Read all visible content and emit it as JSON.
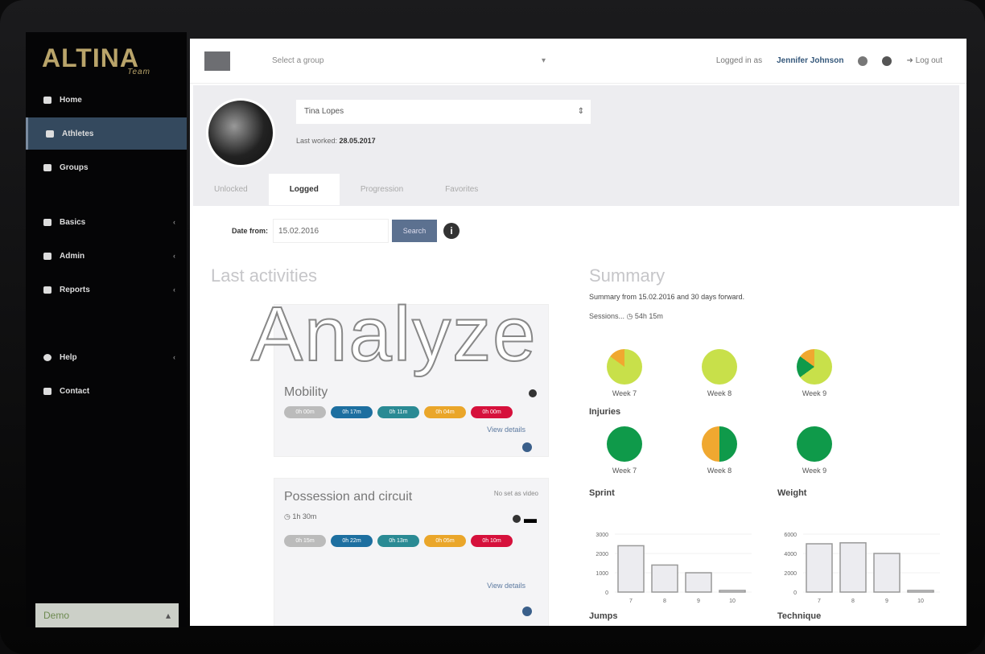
{
  "brand": {
    "logo": "ALTINA",
    "logo_sub": "Team"
  },
  "sidebar": {
    "items": [
      {
        "label": "Home"
      },
      {
        "label": "Athletes",
        "active": true
      },
      {
        "label": "Groups"
      },
      {
        "label": "Basics"
      },
      {
        "label": "Admin"
      },
      {
        "label": "Reports"
      },
      {
        "label": "Help"
      },
      {
        "label": "Contact"
      }
    ],
    "demo_select": "Demo"
  },
  "topbar": {
    "group_placeholder": "Select a group",
    "logged_in_as": "Logged in as",
    "user": "Jennifer Johnson",
    "logout": "Log out"
  },
  "profile": {
    "athlete": "Tina Lopes",
    "last_worked_label": "Last worked:",
    "last_worked": "28.05.2017"
  },
  "tabs": [
    {
      "label": "Unlocked"
    },
    {
      "label": "Logged",
      "active": true
    },
    {
      "label": "Progression"
    },
    {
      "label": "Favorites"
    }
  ],
  "filter": {
    "label": "Date from:",
    "value": "15.02.2016",
    "search": "Search"
  },
  "activities": {
    "title": "Last activities",
    "cards": [
      {
        "title": "Mobility",
        "right": "",
        "duration": "",
        "pills": [
          "0h 00m",
          "0h 17m",
          "0h 11m",
          "0h 04m",
          "0h 00m"
        ],
        "details": "View details"
      },
      {
        "title": "Possession and circuit",
        "right": "No set as video",
        "duration": "1h 30m",
        "pills": [
          "0h 15m",
          "0h 22m",
          "0h 13m",
          "0h 05m",
          "0h 10m"
        ],
        "details": "View details"
      }
    ]
  },
  "summary": {
    "title": "Summary",
    "text": "Summary from 15.02.2016 and 30 days forward.",
    "duration_label": "Sessions...",
    "duration": "54h 15m",
    "load": {
      "weeks": [
        "Week 7",
        "Week 8",
        "Week 9"
      ]
    },
    "injuries": {
      "title": "Injuries",
      "weeks": [
        "Week 7",
        "Week 8",
        "Week 9"
      ]
    }
  },
  "pie_colors": {
    "light_green": "#c8e04a",
    "dark_green": "#0f9a4a",
    "orange": "#f0a830"
  },
  "chart_data": [
    {
      "type": "pie",
      "title": "",
      "categories": [
        "Week 7",
        "Week 8",
        "Week 9"
      ],
      "series": [
        {
          "values": [
            [
              85,
              0,
              15
            ],
            [
              100,
              0,
              0
            ],
            [
              65,
              20,
              15
            ]
          ]
        }
      ],
      "segments": [
        "light_green",
        "dark_green",
        "orange"
      ]
    },
    {
      "type": "pie",
      "title": "Injuries",
      "categories": [
        "Week 7",
        "Week 8",
        "Week 9"
      ],
      "series": [
        {
          "values": [
            [
              0,
              100,
              0
            ],
            [
              0,
              50,
              50
            ],
            [
              0,
              100,
              0
            ]
          ]
        }
      ],
      "segments": [
        "light_green",
        "dark_green",
        "orange"
      ]
    },
    {
      "type": "bar",
      "title": "Sprint",
      "categories": [
        "7",
        "8",
        "9",
        "10"
      ],
      "values": [
        2400,
        1400,
        1000,
        50
      ],
      "yticks": [
        "0",
        "1000",
        "2000",
        "3000"
      ],
      "ylim": [
        0,
        3000
      ]
    },
    {
      "type": "bar",
      "title": "Weight",
      "categories": [
        "7",
        "8",
        "9",
        "10"
      ],
      "values": [
        5000,
        5100,
        4000,
        100
      ],
      "yticks": [
        "0",
        "2000",
        "4000",
        "6000"
      ],
      "ylim": [
        0,
        6000
      ]
    }
  ],
  "more_sections": [
    "Jumps",
    "Technique"
  ],
  "overlay": "Analyze"
}
